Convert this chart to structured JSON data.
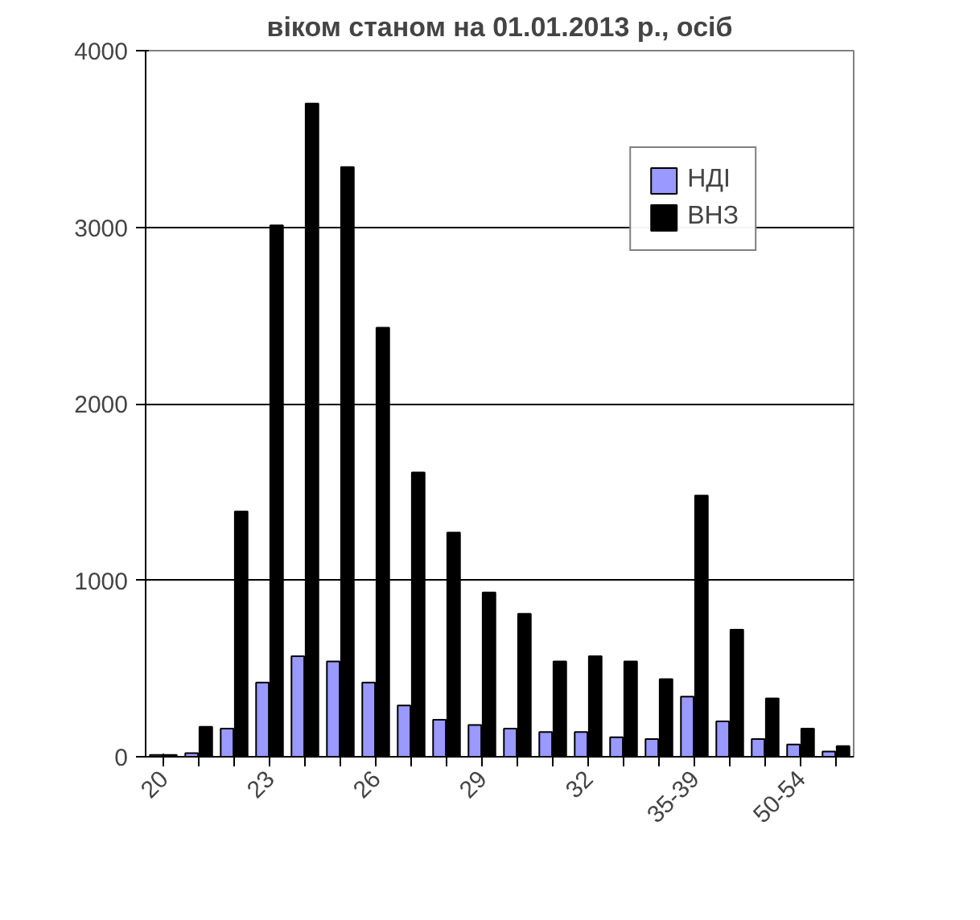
{
  "chart_data": {
    "type": "bar",
    "title": "віком станом на 01.01.2013 р., осіб",
    "categories": [
      "20",
      null,
      null,
      "23",
      null,
      null,
      "26",
      null,
      null,
      "29",
      null,
      null,
      "32",
      null,
      null,
      "35-39",
      null,
      null,
      "50-54",
      null
    ],
    "series": [
      {
        "name": "НДІ",
        "color": "#9999ff",
        "values": [
          10,
          20,
          160,
          420,
          570,
          540,
          420,
          290,
          210,
          180,
          160,
          140,
          140,
          110,
          100,
          340,
          200,
          100,
          70,
          30
        ]
      },
      {
        "name": "ВНЗ",
        "color": "#000000",
        "values": [
          10,
          170,
          1390,
          3010,
          3700,
          3340,
          2430,
          1610,
          1270,
          930,
          810,
          540,
          570,
          540,
          440,
          1480,
          720,
          330,
          160,
          60
        ]
      }
    ],
    "ylim": [
      0,
      4000
    ],
    "yticks": [
      0,
      1000,
      2000,
      3000,
      4000
    ],
    "grid": "y",
    "legend": "top right"
  }
}
